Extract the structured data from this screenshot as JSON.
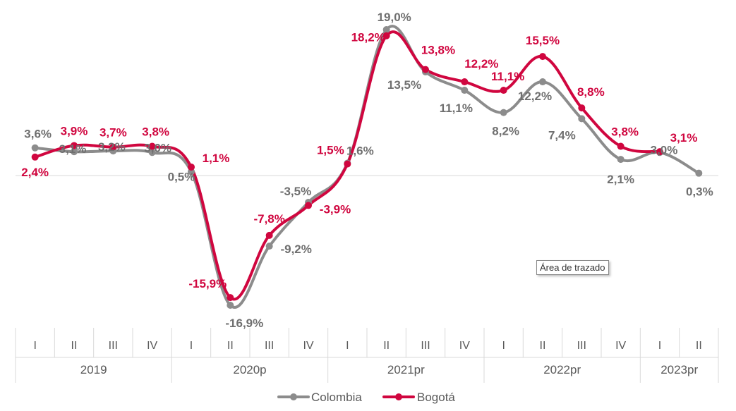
{
  "chart_data": {
    "type": "line",
    "smooth": true,
    "categories": [
      {
        "year": "2019",
        "quarter": "I"
      },
      {
        "year": "2019",
        "quarter": "II"
      },
      {
        "year": "2019",
        "quarter": "III"
      },
      {
        "year": "2019",
        "quarter": "IV"
      },
      {
        "year": "2020p",
        "quarter": "I"
      },
      {
        "year": "2020p",
        "quarter": "II"
      },
      {
        "year": "2020p",
        "quarter": "III"
      },
      {
        "year": "2020p",
        "quarter": "IV"
      },
      {
        "year": "2021pr",
        "quarter": "I"
      },
      {
        "year": "2021pr",
        "quarter": "II"
      },
      {
        "year": "2021pr",
        "quarter": "III"
      },
      {
        "year": "2021pr",
        "quarter": "IV"
      },
      {
        "year": "2022pr",
        "quarter": "I"
      },
      {
        "year": "2022pr",
        "quarter": "II"
      },
      {
        "year": "2022pr",
        "quarter": "III"
      },
      {
        "year": "2022pr",
        "quarter": "IV"
      },
      {
        "year": "2023pr",
        "quarter": "I"
      },
      {
        "year": "2023pr",
        "quarter": "II"
      }
    ],
    "years": [
      "2019",
      "2020p",
      "2021pr",
      "2022pr",
      "2023pr"
    ],
    "ylim": [
      -16.9,
      19.0
    ],
    "series": [
      {
        "name": "Colombia",
        "color": "#8c8c8c",
        "values": [
          3.6,
          3.1,
          3.2,
          3.0,
          0.5,
          -16.9,
          -9.2,
          -3.5,
          1.6,
          19.0,
          13.5,
          11.1,
          8.2,
          12.2,
          7.4,
          2.1,
          3.0,
          0.3
        ],
        "labels": [
          "3,6%",
          "3,1%",
          "3,2%",
          "3,0%",
          "0,5%",
          "-16,9%",
          "-9,2%",
          "-3,5%",
          "1,6%",
          "19,0%",
          "13,5%",
          "11,1%",
          "8,2%",
          "12,2%",
          "7,4%",
          "2,1%",
          "3,0%",
          "0,3%"
        ]
      },
      {
        "name": "Bogotá",
        "color": "#d0063f",
        "values": [
          2.4,
          3.9,
          3.7,
          3.8,
          1.1,
          -15.9,
          -7.8,
          -3.9,
          1.5,
          18.2,
          13.8,
          12.2,
          11.1,
          15.5,
          8.8,
          3.8,
          3.1,
          null
        ],
        "labels": [
          "2,4%",
          "3,9%",
          "3,7%",
          "3,8%",
          "1,1%",
          "-15,9%",
          "-7,8%",
          "-3,9%",
          "1,5%",
          "18,2%",
          "13,8%",
          "12,2%",
          "11,1%",
          "15,5%",
          "8,8%",
          "3,8%",
          "3,1%",
          null
        ]
      }
    ],
    "legend_position": "bottom",
    "annotation": "Área de trazado"
  }
}
